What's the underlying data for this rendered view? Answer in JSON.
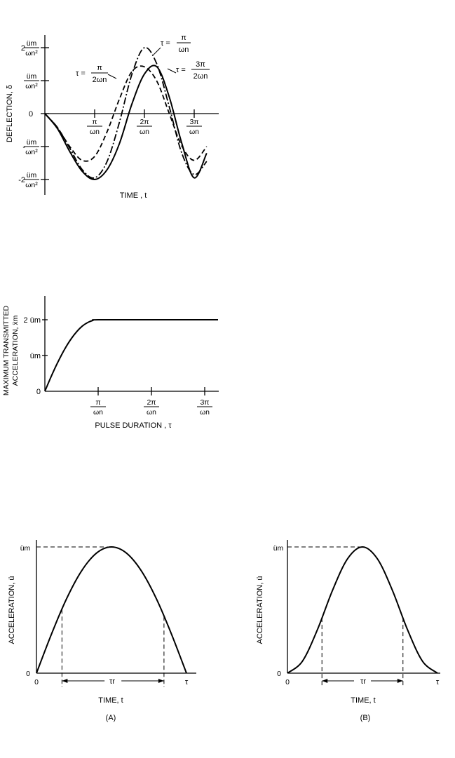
{
  "chart_data": [
    {
      "type": "line",
      "ylabel": "DEFLECTION, δ",
      "xlabel": "TIME , t",
      "x_ticks": [
        {
          "num": "π",
          "den": "ωn",
          "value": 1
        },
        {
          "num": "2π",
          "den": "ωn",
          "value": 2
        },
        {
          "num": "3π",
          "den": "ωn",
          "value": 3
        }
      ],
      "y_ticks": [
        {
          "coef": "2",
          "num": "üm",
          "den": "ωn²",
          "value": 2
        },
        {
          "coef": "",
          "num": "üm",
          "den": "ωn²",
          "value": 1
        },
        {
          "coef": "0",
          "num": "",
          "den": "",
          "value": 0
        },
        {
          "coef": "-",
          "num": "üm",
          "den": "ωn²",
          "value": -1
        },
        {
          "coef": "-2",
          "num": "üm",
          "den": "ωn²",
          "value": -2
        }
      ],
      "series": [
        {
          "name": "τ = π / (2ωn)",
          "label_lhs": "τ =",
          "label_num": "π",
          "label_den": "2ωn",
          "style": "dashed",
          "x": [
            0,
            0.25,
            0.5,
            0.75,
            1.0,
            1.25,
            1.5,
            1.75,
            2.0,
            2.25,
            2.5,
            2.75,
            3.0,
            3.25
          ],
          "y": [
            0,
            -0.42,
            -1.0,
            -1.42,
            -1.3,
            -0.55,
            0.45,
            1.28,
            1.42,
            0.98,
            0.0,
            -0.98,
            -1.42,
            -1.0
          ]
        },
        {
          "name": "τ = π / ωn",
          "label_lhs": "τ =",
          "label_num": "π",
          "label_den": "ωn",
          "style": "dashdot",
          "x": [
            0,
            0.25,
            0.5,
            0.75,
            1.0,
            1.25,
            1.5,
            1.75,
            2.0,
            2.25,
            2.5,
            2.75,
            3.0,
            3.25
          ],
          "y": [
            0,
            -0.42,
            -1.05,
            -1.7,
            -1.95,
            -1.45,
            -0.25,
            1.2,
            2.0,
            1.5,
            0.2,
            -1.2,
            -1.85,
            -1.45
          ]
        },
        {
          "name": "τ = 3π / (2ωn)",
          "label_lhs": "τ =",
          "label_num": "3π",
          "label_den": "2ωn",
          "style": "solid",
          "x": [
            0,
            0.25,
            0.5,
            0.75,
            1.0,
            1.25,
            1.5,
            1.75,
            2.0,
            2.25,
            2.5,
            2.75,
            3.0,
            3.25
          ],
          "y": [
            0,
            -0.45,
            -1.15,
            -1.75,
            -2.0,
            -1.7,
            -0.9,
            0.3,
            1.2,
            1.42,
            0.5,
            -0.9,
            -1.95,
            -1.2
          ]
        }
      ]
    },
    {
      "type": "line",
      "ylabel_line1": "MAXIMUM TRANSMITTED",
      "ylabel_line2": "ACCELERATION, ẍm",
      "xlabel": "PULSE DURATION , τ",
      "x_ticks": [
        {
          "num": "π",
          "den": "ωn",
          "value": 1
        },
        {
          "num": "2π",
          "den": "ωn",
          "value": 2
        },
        {
          "num": "3π",
          "den": "ωn",
          "value": 3
        }
      ],
      "y_ticks": [
        {
          "label": "2 üm",
          "value": 2
        },
        {
          "label": "üm",
          "value": 1
        },
        {
          "label": "0",
          "value": 0
        }
      ],
      "series": [
        {
          "x": [
            0,
            0.1,
            0.2,
            0.3,
            0.4,
            0.5,
            0.6,
            0.7,
            0.8,
            0.9,
            1.0,
            2.0,
            3.0,
            3.25
          ],
          "y": [
            0,
            0.35,
            0.68,
            0.98,
            1.25,
            1.48,
            1.67,
            1.82,
            1.92,
            1.98,
            2.0,
            2.0,
            2.0,
            2.0
          ]
        }
      ]
    },
    {
      "type": "line",
      "panel": "(A)",
      "ylabel": "ACCELERATION, ü",
      "xlabel": "TIME, t",
      "y_tick_top": "üm",
      "y_tick_zero": "0",
      "x_tick_zero": "0",
      "x_tick_end": "τ",
      "tau_r_label": "τr",
      "tau_r_bounds": [
        0.17,
        0.85
      ],
      "peak_t": 0.5,
      "series": [
        {
          "x": [
            0,
            0.1,
            0.2,
            0.3,
            0.4,
            0.5,
            0.6,
            0.7,
            0.8,
            0.9,
            1.0
          ],
          "y": [
            0,
            0.309,
            0.588,
            0.809,
            0.951,
            1.0,
            0.951,
            0.809,
            0.588,
            0.309,
            0
          ]
        }
      ]
    },
    {
      "type": "line",
      "panel": "(B)",
      "ylabel": "ACCELERATION, ü",
      "xlabel": "TIME, t",
      "y_tick_top": "üm",
      "y_tick_zero": "0",
      "x_tick_zero": "0",
      "x_tick_end": "τ",
      "tau_r_label": "τr",
      "tau_r_bounds": [
        0.23,
        0.77
      ],
      "peak_t": 0.5,
      "series": [
        {
          "x": [
            0,
            0.1,
            0.2,
            0.3,
            0.4,
            0.5,
            0.6,
            0.7,
            0.8,
            0.9,
            1.0
          ],
          "y": [
            0,
            0.095,
            0.345,
            0.655,
            0.905,
            1.0,
            0.905,
            0.655,
            0.345,
            0.095,
            0
          ]
        }
      ]
    }
  ]
}
